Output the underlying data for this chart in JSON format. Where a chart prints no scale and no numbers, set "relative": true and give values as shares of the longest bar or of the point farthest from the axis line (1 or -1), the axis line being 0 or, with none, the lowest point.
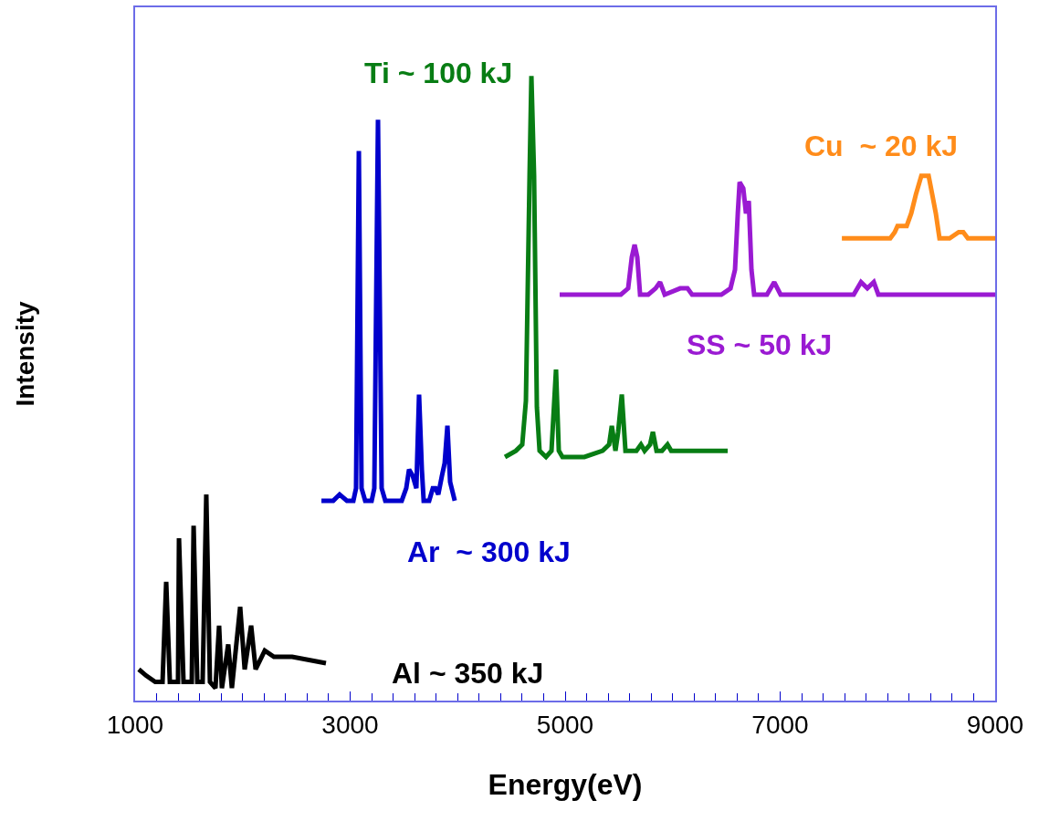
{
  "chart_data": {
    "type": "line",
    "relative": true,
    "xlabel": "Energy(eV)",
    "ylabel": "Intensity",
    "xlim": [
      1000,
      9000
    ],
    "xticks": [
      1000,
      3000,
      5000,
      7000,
      9000
    ],
    "legend": false,
    "marker": "none",
    "line_style": "solid",
    "series": [
      {
        "name": "Al ~ 350 kJ",
        "color": "#000000",
        "x": [
          1034,
          1102,
          1187,
          1255,
          1289,
          1323,
          1399,
          1408,
          1450,
          1527,
          1544,
          1578,
          1628,
          1662,
          1696,
          1747,
          1781,
          1807,
          1866,
          1900,
          1977,
          2019,
          2079,
          2121,
          2206,
          2291,
          2461,
          2775
        ],
        "values": [
          0.05,
          0.04,
          0.03,
          0.03,
          0.19,
          0.03,
          0.03,
          0.26,
          0.03,
          0.03,
          0.28,
          0.03,
          0.03,
          0.33,
          0.03,
          0.02,
          0.12,
          0.02,
          0.09,
          0.02,
          0.15,
          0.05,
          0.12,
          0.05,
          0.08,
          0.07,
          0.07,
          0.06
        ]
      },
      {
        "name": "Ar  ~ 300 kJ",
        "color": "#0000cc",
        "x": [
          2733,
          2843,
          2902,
          2970,
          3030,
          3055,
          3081,
          3106,
          3140,
          3200,
          3225,
          3259,
          3293,
          3327,
          3480,
          3522,
          3548,
          3582,
          3616,
          3641,
          3667,
          3684,
          3735,
          3769,
          3794,
          3820,
          3854,
          3879,
          3905,
          3930,
          3973
        ],
        "values": [
          0.32,
          0.32,
          0.33,
          0.32,
          0.32,
          0.34,
          0.88,
          0.34,
          0.32,
          0.32,
          0.34,
          0.93,
          0.34,
          0.32,
          0.32,
          0.34,
          0.37,
          0.36,
          0.34,
          0.49,
          0.37,
          0.32,
          0.32,
          0.34,
          0.34,
          0.33,
          0.36,
          0.38,
          0.44,
          0.35,
          0.32
        ]
      },
      {
        "name": "Ti ~ 100 kJ",
        "color": "#087d14",
        "x": [
          4440,
          4542,
          4601,
          4635,
          4669,
          4686,
          4711,
          4737,
          4762,
          4822,
          4873,
          4915,
          4941,
          4975,
          5179,
          5349,
          5409,
          5434,
          5468,
          5493,
          5527,
          5561,
          5603,
          5663,
          5705,
          5739,
          5790,
          5816,
          5850,
          5901,
          5952,
          5986,
          6198,
          6512
        ],
        "values": [
          0.39,
          0.4,
          0.41,
          0.48,
          0.84,
          1.0,
          0.84,
          0.47,
          0.4,
          0.39,
          0.4,
          0.53,
          0.4,
          0.39,
          0.39,
          0.4,
          0.41,
          0.44,
          0.4,
          0.43,
          0.49,
          0.4,
          0.4,
          0.4,
          0.41,
          0.4,
          0.41,
          0.43,
          0.4,
          0.4,
          0.41,
          0.4,
          0.4,
          0.4
        ]
      },
      {
        "name": "SS ~ 50 kJ",
        "color": "#9a1ad2",
        "x": [
          4949,
          5518,
          5586,
          5620,
          5646,
          5671,
          5697,
          5773,
          5841,
          5883,
          5926,
          6070,
          6138,
          6181,
          6453,
          6538,
          6580,
          6606,
          6623,
          6657,
          6682,
          6708,
          6733,
          6758,
          6877,
          6945,
          7004,
          7557,
          7684,
          7752,
          7811,
          7871,
          7913,
          8236,
          8661,
          9000
        ],
        "values": [
          0.65,
          0.65,
          0.66,
          0.71,
          0.73,
          0.71,
          0.65,
          0.65,
          0.66,
          0.67,
          0.65,
          0.66,
          0.66,
          0.65,
          0.65,
          0.66,
          0.69,
          0.78,
          0.83,
          0.82,
          0.78,
          0.8,
          0.69,
          0.65,
          0.65,
          0.67,
          0.65,
          0.65,
          0.65,
          0.67,
          0.66,
          0.67,
          0.65,
          0.65,
          0.65,
          0.65
        ]
      },
      {
        "name": "Cu  ~ 20 kJ",
        "color": "#ff8c1a",
        "x": [
          7574,
          7897,
          8024,
          8066,
          8092,
          8134,
          8177,
          8219,
          8262,
          8313,
          8381,
          8415,
          8448,
          8482,
          8576,
          8661,
          8703,
          8746,
          9000
        ],
        "values": [
          0.74,
          0.74,
          0.74,
          0.75,
          0.76,
          0.76,
          0.76,
          0.78,
          0.81,
          0.84,
          0.84,
          0.81,
          0.78,
          0.74,
          0.74,
          0.75,
          0.75,
          0.74,
          0.74
        ]
      }
    ]
  }
}
